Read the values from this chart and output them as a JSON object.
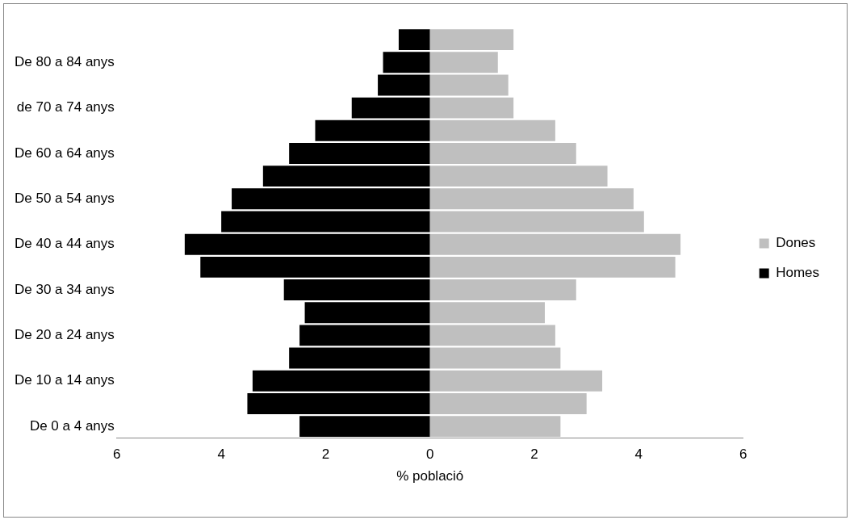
{
  "chart_data": {
    "type": "bar",
    "orientation": "horizontal",
    "stacked": true,
    "xlabel": "% població",
    "categories": [
      null,
      "De 80 a 84 anys",
      null,
      "de 70 a 74 anys",
      null,
      "De 60 a 64 anys",
      null,
      "De 50 a 54 anys",
      null,
      "De 40 a 44 anys",
      null,
      "De 30 a 34 anys",
      null,
      "De 20 a 24 anys",
      null,
      "De 10 a 14 anys",
      null,
      "De 0 a 4 anys"
    ],
    "series": [
      {
        "name": "Dones",
        "color": "#bfbfbf",
        "values": [
          1.6,
          1.3,
          1.5,
          1.6,
          2.4,
          2.8,
          3.4,
          3.9,
          4.1,
          4.8,
          4.7,
          2.8,
          2.2,
          2.4,
          2.5,
          3.3,
          3.0,
          2.5
        ]
      },
      {
        "name": "Homes",
        "color": "#000000",
        "values": [
          -0.6,
          -0.9,
          -1.0,
          -1.5,
          -2.2,
          -2.7,
          -3.2,
          -3.8,
          -4.0,
          -4.7,
          -4.4,
          -2.8,
          -2.4,
          -2.5,
          -2.7,
          -3.4,
          -3.5,
          -2.5
        ]
      }
    ],
    "xlim": [
      -6,
      6
    ],
    "xticks": [
      {
        "value": -6,
        "label": "6"
      },
      {
        "value": -4,
        "label": "4"
      },
      {
        "value": -2,
        "label": "2"
      },
      0,
      2,
      4,
      6
    ],
    "grid": false,
    "legend": "right"
  }
}
